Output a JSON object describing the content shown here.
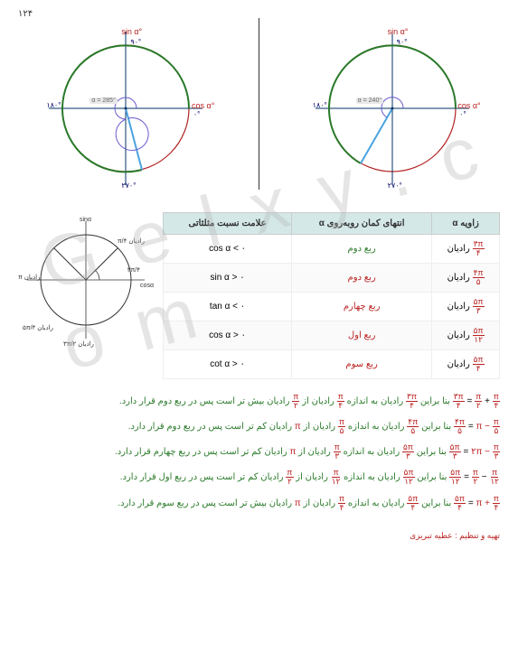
{
  "page_number": "۱۲۴",
  "watermark_text": "G e l x y . c o m",
  "circle_left": {
    "sin_label": "sin α°",
    "cos_label": "cos α°",
    "deg_90": "۹٠°",
    "deg_180": "۱۸٠°",
    "deg_270": "۲۷٠°",
    "deg_0": "٠°",
    "angle_text": "α = 285°",
    "colors": {
      "circle": "#b22222",
      "axis": "#003366",
      "arc": "#2a7a2a",
      "ray": "#4aa3df",
      "spiral": "#6a5acd"
    }
  },
  "circle_right": {
    "sin_label": "sin α°",
    "cos_label": "cos α°",
    "deg_90": "۹٠°",
    "deg_180": "۱۸٠°",
    "deg_270": "۲۷٠°",
    "deg_0": "٠°",
    "angle_text": "α = 240°",
    "colors": {
      "circle": "#b22222",
      "axis": "#003366",
      "arc": "#2a7a2a",
      "ray": "#4aa3df"
    }
  },
  "small_circle": {
    "labels": {
      "top": "sinα",
      "right": "cosα",
      "pi4": "π/۴ رادیان",
      "3pi4": "۳π/۴",
      "pi": "π رادیان",
      "3pi2": "۳π/۲ رادیان",
      "5pi4": "۵π/۴ رادیان"
    }
  },
  "table": {
    "headers": [
      "زاویه α",
      "انتهای کمان روبه‌روی α",
      "علامت نسبت مثلثاتی"
    ],
    "rows": [
      {
        "angle_num": "۳π",
        "angle_den": "۴",
        "angle_suffix": "رادیان",
        "quad": "ربع دوم",
        "quad_color": "green",
        "trig": "cos α < ٠"
      },
      {
        "angle_num": "۴π",
        "angle_den": "۵",
        "angle_suffix": "رادیان",
        "quad": "ربع دوم",
        "quad_color": "red",
        "trig": "sin α > ٠"
      },
      {
        "angle_num": "۵π",
        "angle_den": "۳",
        "angle_suffix": "رادیان",
        "quad": "ربع چهارم",
        "quad_color": "red",
        "trig": "tan α < ٠"
      },
      {
        "angle_num": "۵π",
        "angle_den": "۱۲",
        "angle_suffix": "رادیان",
        "quad": "ربع اول",
        "quad_color": "red",
        "trig": "cos α > ٠"
      },
      {
        "angle_num": "۵π",
        "angle_den": "۴",
        "angle_suffix": "رادیان",
        "quad": "ربع سوم",
        "quad_color": "red",
        "trig": "cot α > ٠"
      }
    ]
  },
  "lines": [
    {
      "lhs_n": "۳π",
      "lhs_d": "۴",
      "eq_n": "π",
      "eq_d": "۲",
      "plus_n": "π",
      "plus_d": "۴",
      "tail_a_n": "۳π",
      "tail_a_d": "۴",
      "tail_b_n": "π",
      "tail_b_d": "۴",
      "ref_n": "π",
      "ref_d": "۲",
      "quad": "ربع دوم",
      "cmp": "بیش تر"
    },
    {
      "lhs_n": "۴π",
      "lhs_d": "۵",
      "eq_n": "",
      "eq_d": "",
      "plus_n": "π",
      "plus_d": "۵",
      "tail_a_n": "۴π",
      "tail_a_d": "۵",
      "tail_b_n": "π",
      "tail_b_d": "۵",
      "ref_n": "",
      "ref_d": "",
      "quad": "ربع دوم",
      "cmp": "کم تر",
      "eq_txt": "π −"
    },
    {
      "lhs_n": "۵π",
      "lhs_d": "۳",
      "eq_n": "",
      "eq_d": "",
      "plus_n": "π",
      "plus_d": "۳",
      "tail_a_n": "۵π",
      "tail_a_d": "۳",
      "tail_b_n": "π",
      "tail_b_d": "۳",
      "ref_n": "",
      "ref_d": "",
      "quad": "ربع چهارم",
      "cmp": "کم تر",
      "eq_txt": "۲π −"
    },
    {
      "lhs_n": "۵π",
      "lhs_d": "۱۲",
      "eq_n": "π",
      "eq_d": "۲",
      "plus_n": "π",
      "plus_d": "۱۲",
      "tail_a_n": "۵π",
      "tail_a_d": "۱۲",
      "tail_b_n": "π",
      "tail_b_d": "۱۲",
      "ref_n": "π",
      "ref_d": "۲",
      "quad": "ربع اول",
      "cmp": "کم تر",
      "minus": true
    },
    {
      "lhs_n": "۵π",
      "lhs_d": "۴",
      "eq_n": "",
      "eq_d": "",
      "plus_n": "π",
      "plus_d": "۴",
      "tail_a_n": "۵π",
      "tail_a_d": "۴",
      "tail_b_n": "π",
      "tail_b_d": "۴",
      "ref_n": "",
      "ref_d": "",
      "quad": "ربع سوم",
      "cmp": "بیش تر",
      "eq_txt": "π +"
    }
  ],
  "footer_text": "تهیه و تنظیم : عطیه تبریزی"
}
